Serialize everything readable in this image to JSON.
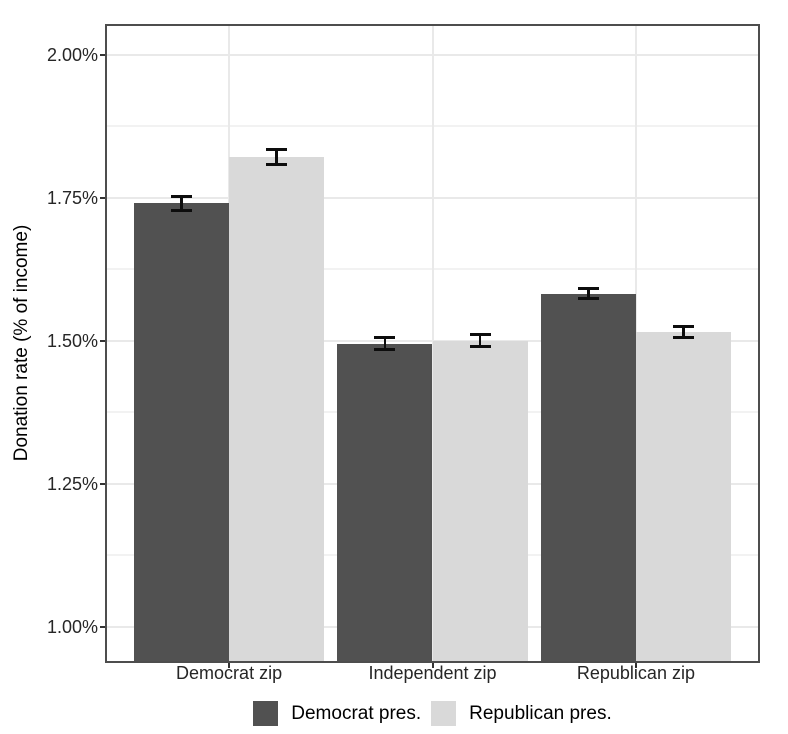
{
  "chart_data": {
    "type": "bar",
    "title": "",
    "ylabel": "Donation rate (% of income)",
    "xlabel": "",
    "categories": [
      "Democrat zip",
      "Independent zip",
      "Republican zip"
    ],
    "series": [
      {
        "name": "Democrat pres.",
        "color": "#515151",
        "values": [
          1.74,
          1.495,
          1.582
        ],
        "errors": [
          0.012,
          0.011,
          0.009
        ]
      },
      {
        "name": "Republican pres.",
        "color": "#d9d9d9",
        "values": [
          1.821,
          1.5,
          1.515
        ],
        "errors": [
          0.013,
          0.011,
          0.01
        ]
      }
    ],
    "y_ticks": [
      {
        "value": 1.0,
        "label": "1.00%"
      },
      {
        "value": 1.25,
        "label": "1.25%"
      },
      {
        "value": 1.5,
        "label": "1.50%"
      },
      {
        "value": 1.75,
        "label": "1.75%"
      },
      {
        "value": 2.0,
        "label": "2.00%"
      }
    ],
    "y_minor": [
      1.125,
      1.375,
      1.625,
      1.875
    ],
    "ylim": [
      0.94,
      2.05
    ],
    "grid": true,
    "legend_position": "bottom",
    "error_bars": true,
    "colors": {
      "panel_border": "#4d4d4d",
      "grid_major": "#e9e9e9",
      "grid_minor": "#f2f2f2",
      "axis_tick": "#333333",
      "axis_text": "#262626",
      "error_bar": "#0d0d0d",
      "background": "#ffffff"
    }
  }
}
